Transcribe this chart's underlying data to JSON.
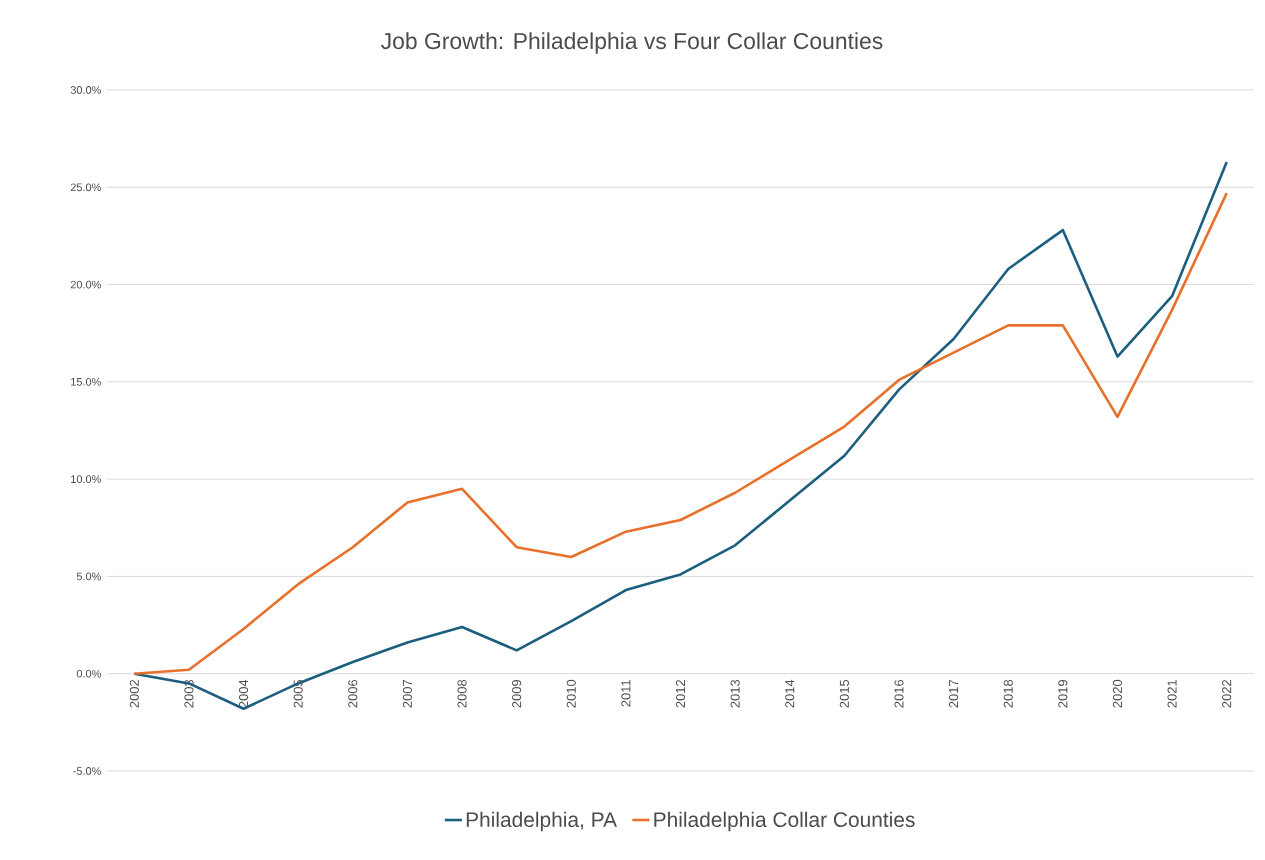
{
  "chart_data": {
    "type": "line",
    "title": "Job Growth: Philadelphia vs Four Collar Counties",
    "categories": [
      "2002",
      "2003",
      "2004",
      "2005",
      "2006",
      "2007",
      "2008",
      "2009",
      "2010",
      "2011",
      "2012",
      "2013",
      "2014",
      "2015",
      "2016",
      "2017",
      "2018",
      "2019",
      "2020",
      "2021",
      "2022"
    ],
    "series": [
      {
        "name": "Philadelphia, PA",
        "color": "#1b5e7e",
        "values": [
          0,
          -0.5,
          -1.8,
          -0.5,
          0.6,
          1.6,
          2.4,
          1.2,
          2.7,
          4.3,
          5.1,
          6.6,
          8.9,
          11.2,
          14.6,
          17.2,
          20.8,
          22.8,
          16.3,
          19.4,
          26.3
        ]
      },
      {
        "name": "Philadelphia Collar Counties",
        "color": "#e8702a",
        "values": [
          0,
          0.2,
          2.3,
          4.6,
          6.5,
          8.8,
          9.5,
          6.5,
          6.0,
          7.3,
          7.9,
          9.3,
          11.0,
          12.7,
          15.1,
          16.5,
          17.9,
          17.9,
          13.2,
          18.7,
          24.7
        ]
      }
    ],
    "ylim": [
      -5,
      30
    ],
    "yticks": [
      {
        "value": -5,
        "label": "-5.0%"
      },
      {
        "value": 0,
        "label": "0.0%"
      },
      {
        "value": 5,
        "label": "5.0%"
      },
      {
        "value": 10,
        "label": "10.0%"
      },
      {
        "value": 15,
        "label": "15.0%"
      },
      {
        "value": 20,
        "label": "20.0%"
      },
      {
        "value": 25,
        "label": "25.0%"
      },
      {
        "value": 30,
        "label": "30.0%"
      }
    ],
    "grid": "y",
    "legend": "bottom",
    "marker": "none",
    "line_style": "solid"
  }
}
